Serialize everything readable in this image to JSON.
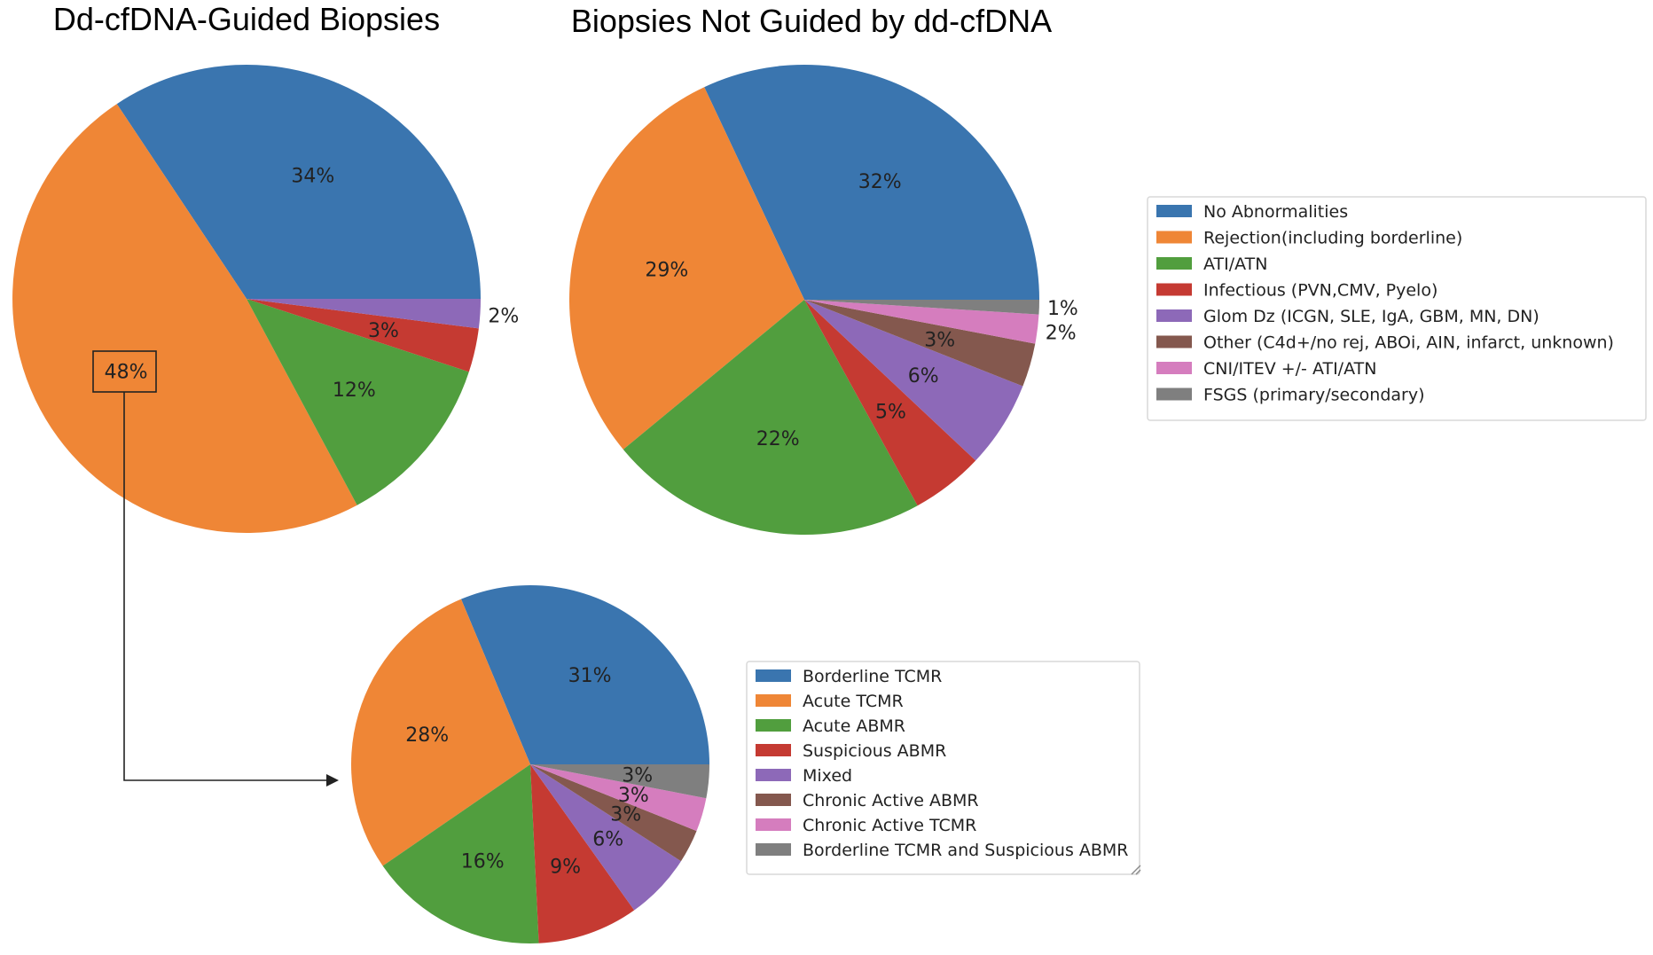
{
  "chart_data": [
    {
      "type": "pie",
      "id": "dd-guided",
      "title": "Dd-cfDNA-Guided Biopsies",
      "slices": [
        {
          "label": "No Abnormalities",
          "value": 34,
          "text": "34%",
          "color": "#3a75af"
        },
        {
          "label": "Rejection(including borderline)",
          "value": 48,
          "text": "48%",
          "color": "#ef8636"
        },
        {
          "label": "ATI/ATN",
          "value": 12,
          "text": "12%",
          "color": "#519e3e"
        },
        {
          "label": "Infectious (PVN,CMV, Pyelo)",
          "value": 3,
          "text": "3%",
          "color": "#c53a32"
        },
        {
          "label": "Glom Dz (ICGN, SLE, IgA, GBM, MN, DN)",
          "value": 2,
          "text": "2%",
          "color": "#8d69b8"
        }
      ],
      "highlighted_slice": "48%"
    },
    {
      "type": "pie",
      "id": "not-guided",
      "title": "Biopsies Not Guided by dd-cfDNA",
      "slices": [
        {
          "label": "No Abnormalities",
          "value": 32,
          "text": "32%",
          "color": "#3a75af"
        },
        {
          "label": "Rejection(including borderline)",
          "value": 29,
          "text": "29%",
          "color": "#ef8636"
        },
        {
          "label": "ATI/ATN",
          "value": 22,
          "text": "22%",
          "color": "#519e3e"
        },
        {
          "label": "Infectious (PVN,CMV, Pyelo)",
          "value": 5,
          "text": "5%",
          "color": "#c53a32"
        },
        {
          "label": "Glom Dz (ICGN, SLE, IgA, GBM, MN, DN)",
          "value": 6,
          "text": "6%",
          "color": "#8d69b8"
        },
        {
          "label": "Other (C4d+/no rej, ABOi, AIN, infarct, unknown)",
          "value": 3,
          "text": "3%",
          "color": "#84584e"
        },
        {
          "label": "CNI/ITEV +/- ATI/ATN",
          "value": 2,
          "text": "2%",
          "color": "#d57dbe"
        },
        {
          "label": "FSGS (primary/secondary)",
          "value": 1,
          "text": "1%",
          "color": "#7f7f7f"
        }
      ],
      "legend": [
        {
          "label": "No Abnormalities",
          "color": "#3a75af"
        },
        {
          "label": "Rejection(including borderline)",
          "color": "#ef8636"
        },
        {
          "label": "ATI/ATN",
          "color": "#519e3e"
        },
        {
          "label": "Infectious (PVN,CMV, Pyelo)",
          "color": "#c53a32"
        },
        {
          "label": "Glom Dz (ICGN, SLE, IgA, GBM, MN, DN)",
          "color": "#8d69b8"
        },
        {
          "label": "Other (C4d+/no rej, ABOi, AIN, infarct, unknown)",
          "color": "#84584e"
        },
        {
          "label": "CNI/ITEV +/- ATI/ATN",
          "color": "#d57dbe"
        },
        {
          "label": "FSGS (primary/secondary)",
          "color": "#7f7f7f"
        }
      ]
    },
    {
      "type": "pie",
      "id": "rejection-breakdown",
      "title": "",
      "source": "Rejection(including borderline) slice of Dd-cfDNA-Guided Biopsies",
      "slices": [
        {
          "label": "Borderline TCMR",
          "value": 31,
          "text": "31%",
          "color": "#3a75af"
        },
        {
          "label": "Acute TCMR",
          "value": 28,
          "text": "28%",
          "color": "#ef8636"
        },
        {
          "label": "Acute ABMR",
          "value": 16,
          "text": "16%",
          "color": "#519e3e"
        },
        {
          "label": "Suspicious ABMR",
          "value": 9,
          "text": "9%",
          "color": "#c53a32"
        },
        {
          "label": "Mixed",
          "value": 6,
          "text": "6%",
          "color": "#8d69b8"
        },
        {
          "label": "Chronic Active ABMR",
          "value": 3,
          "text": "3%",
          "color": "#84584e"
        },
        {
          "label": "Chronic Active TCMR",
          "value": 3,
          "text": "3%",
          "color": "#d57dbe"
        },
        {
          "label": "Borderline TCMR and Suspicious ABMR",
          "value": 3,
          "text": "3%",
          "color": "#7f7f7f"
        }
      ],
      "legend": [
        {
          "label": "Borderline TCMR",
          "color": "#3a75af"
        },
        {
          "label": "Acute TCMR",
          "color": "#ef8636"
        },
        {
          "label": "Acute ABMR",
          "color": "#519e3e"
        },
        {
          "label": "Suspicious ABMR",
          "color": "#c53a32"
        },
        {
          "label": "Mixed",
          "color": "#8d69b8"
        },
        {
          "label": "Chronic Active ABMR",
          "color": "#84584e"
        },
        {
          "label": "Chronic Active TCMR",
          "color": "#d57dbe"
        },
        {
          "label": "Borderline TCMR and Suspicious ABMR",
          "color": "#7f7f7f"
        }
      ]
    }
  ]
}
